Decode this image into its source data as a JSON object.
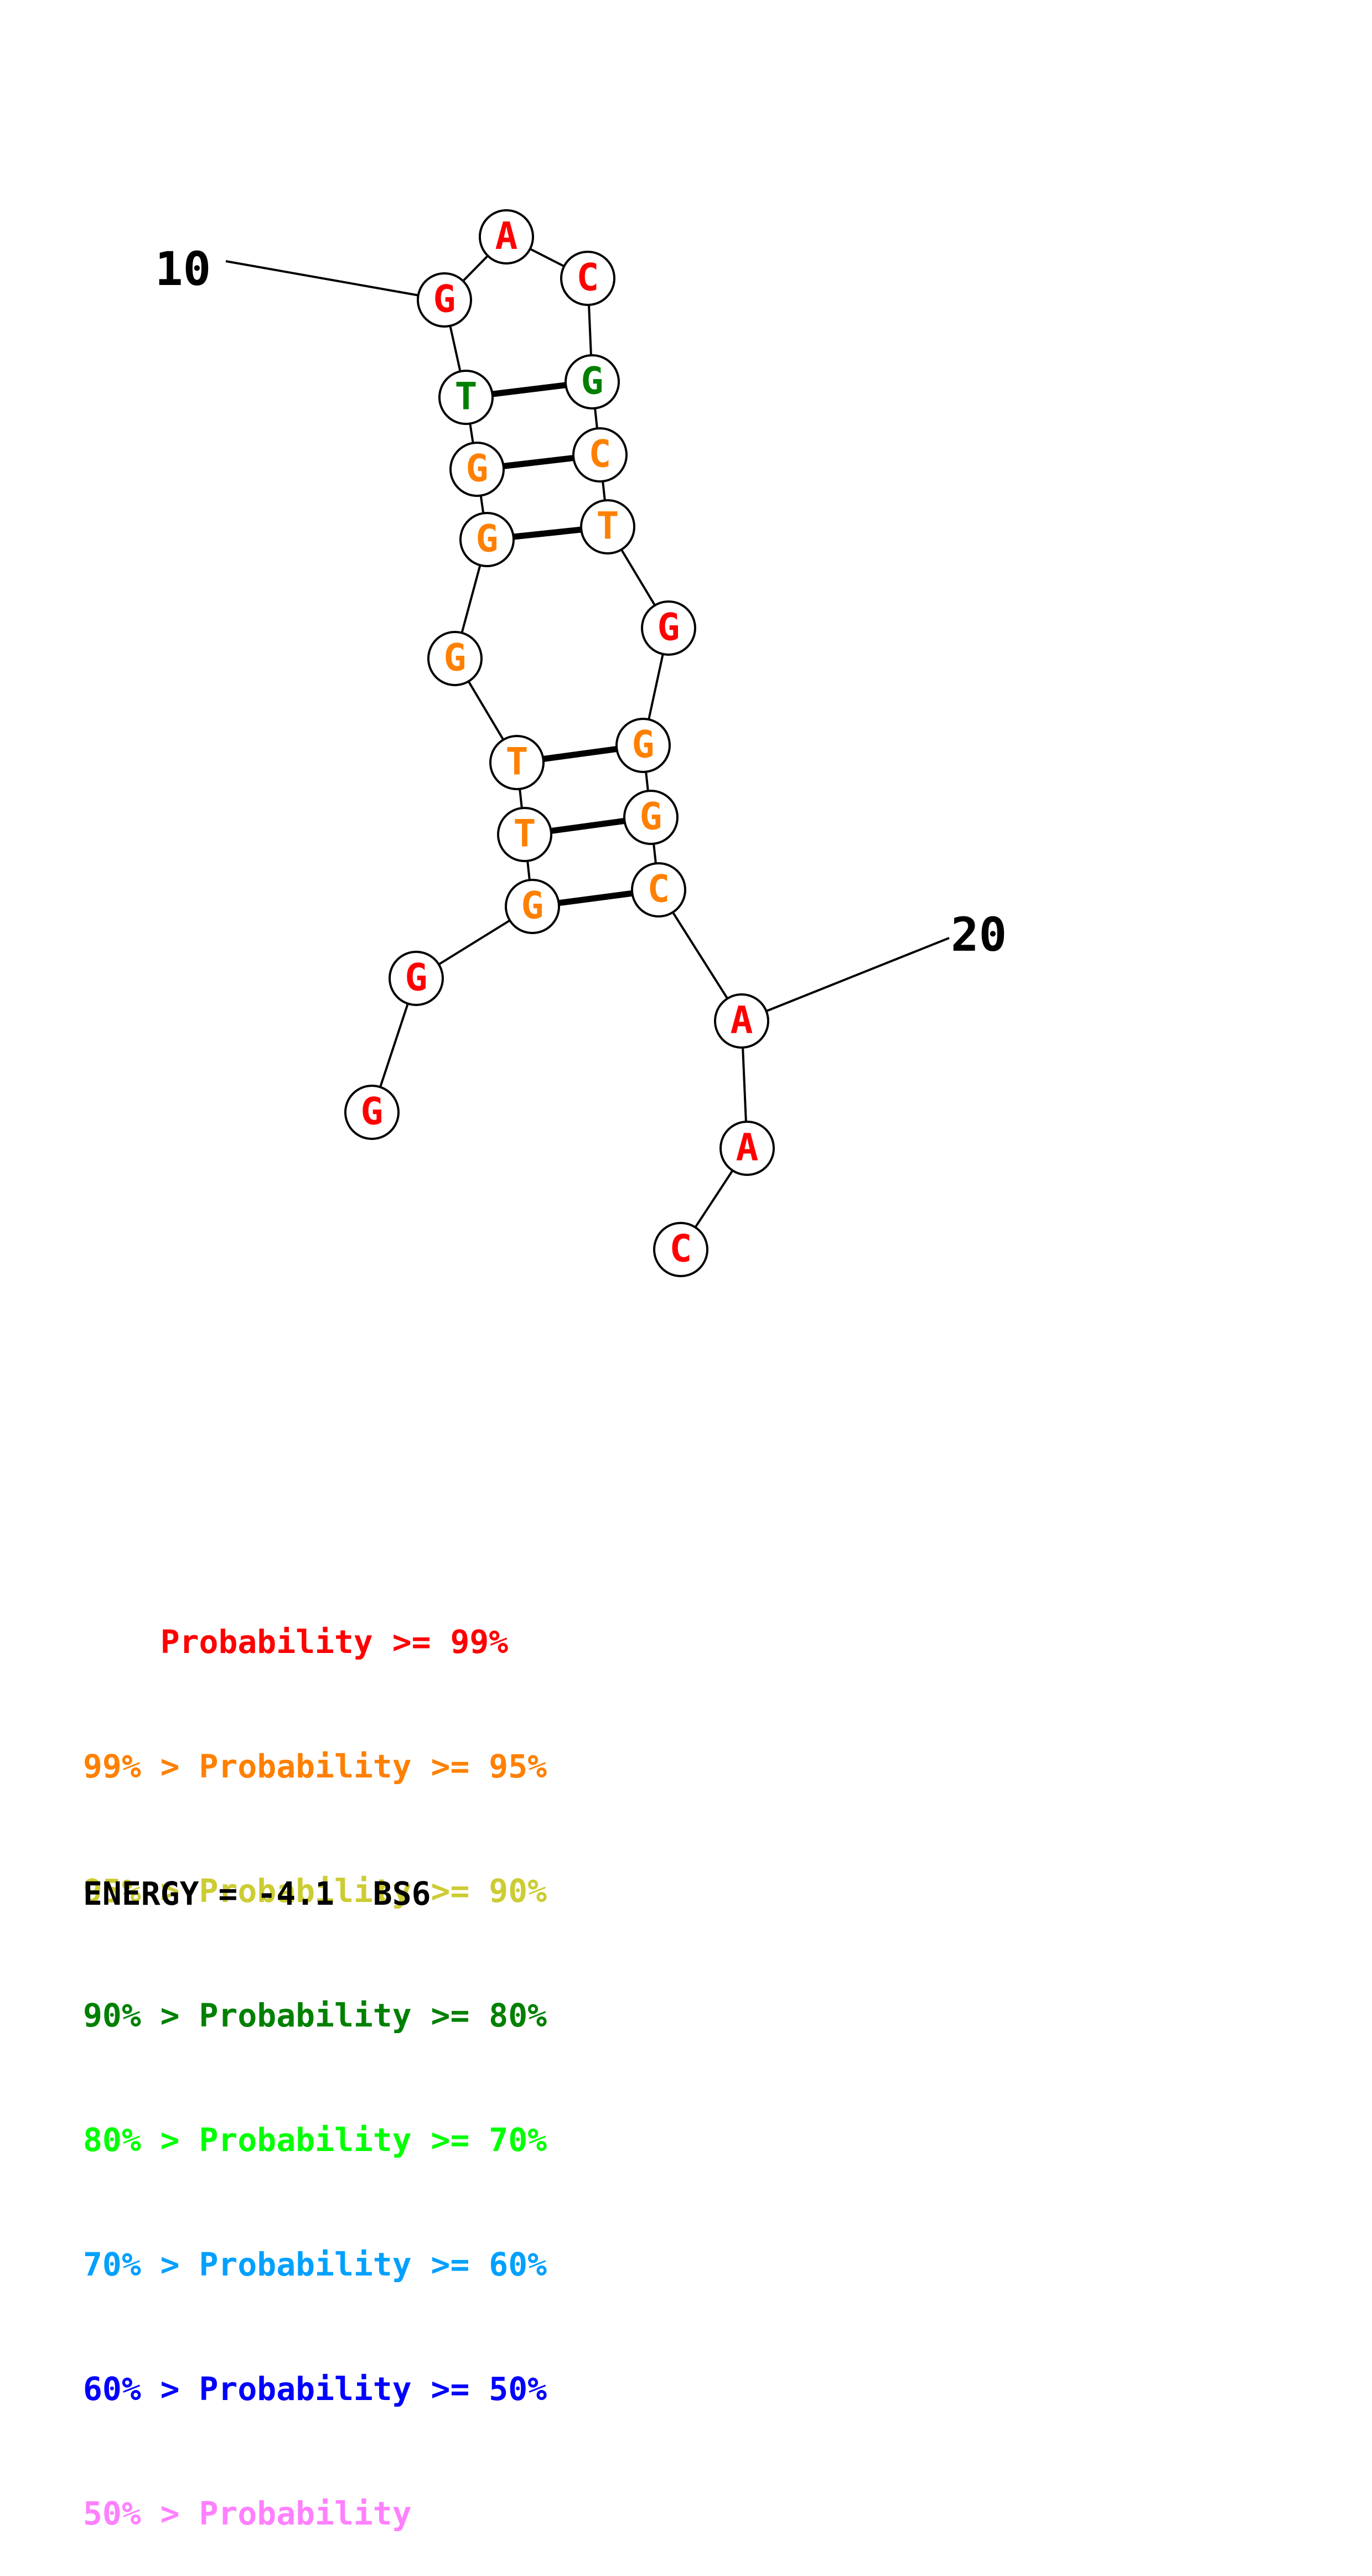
{
  "nucleotides": [
    {
      "base": "G",
      "color": "#ff0000"
    },
    {
      "base": "G",
      "color": "#ff0000"
    },
    {
      "base": "G",
      "color": "#ff8000"
    },
    {
      "base": "T",
      "color": "#ff8000"
    },
    {
      "base": "T",
      "color": "#ff8000"
    },
    {
      "base": "G",
      "color": "#ff8000"
    },
    {
      "base": "G",
      "color": "#ff8000"
    },
    {
      "base": "G",
      "color": "#ff8000"
    },
    {
      "base": "T",
      "color": "#008000"
    },
    {
      "base": "G",
      "color": "#ff0000"
    },
    {
      "base": "A",
      "color": "#ff0000"
    },
    {
      "base": "C",
      "color": "#ff0000"
    },
    {
      "base": "G",
      "color": "#008000"
    },
    {
      "base": "C",
      "color": "#ff8000"
    },
    {
      "base": "T",
      "color": "#ff8000"
    },
    {
      "base": "G",
      "color": "#ff0000"
    },
    {
      "base": "G",
      "color": "#ff8000"
    },
    {
      "base": "G",
      "color": "#ff8000"
    },
    {
      "base": "C",
      "color": "#ff8000"
    },
    {
      "base": "A",
      "color": "#ff0000"
    },
    {
      "base": "A",
      "color": "#ff0000"
    },
    {
      "base": "C",
      "color": "#ff0000"
    }
  ],
  "base_pairs": [
    [
      3,
      19
    ],
    [
      4,
      18
    ],
    [
      5,
      17
    ],
    [
      7,
      15
    ],
    [
      8,
      14
    ],
    [
      9,
      13
    ]
  ],
  "position_labels": [
    {
      "text": "10",
      "nucleotide": 10
    },
    {
      "text": "20",
      "nucleotide": 20
    }
  ],
  "legend": [
    {
      "prefix": "    ",
      "label": "Probability >= 99%",
      "color": "#ff0000"
    },
    {
      "prefix": "99% > ",
      "label": "Probability >= 95%",
      "color": "#ff8000"
    },
    {
      "prefix": "95% > ",
      "label": "Probability >= 90%",
      "color": "#cccc33"
    },
    {
      "prefix": "90% > ",
      "label": "Probability >= 80%",
      "color": "#008000"
    },
    {
      "prefix": "80% > ",
      "label": "Probability >= 70%",
      "color": "#00ff00"
    },
    {
      "prefix": "70% > ",
      "label": "Probability >= 60%",
      "color": "#00a0ff"
    },
    {
      "prefix": "60% > ",
      "label": "Probability >= 50%",
      "color": "#0000ff"
    },
    {
      "prefix": "50% > ",
      "label": "Probability",
      "color": "#ff80ff"
    }
  ],
  "energy_label": "ENERGY = -4.1  BS6"
}
